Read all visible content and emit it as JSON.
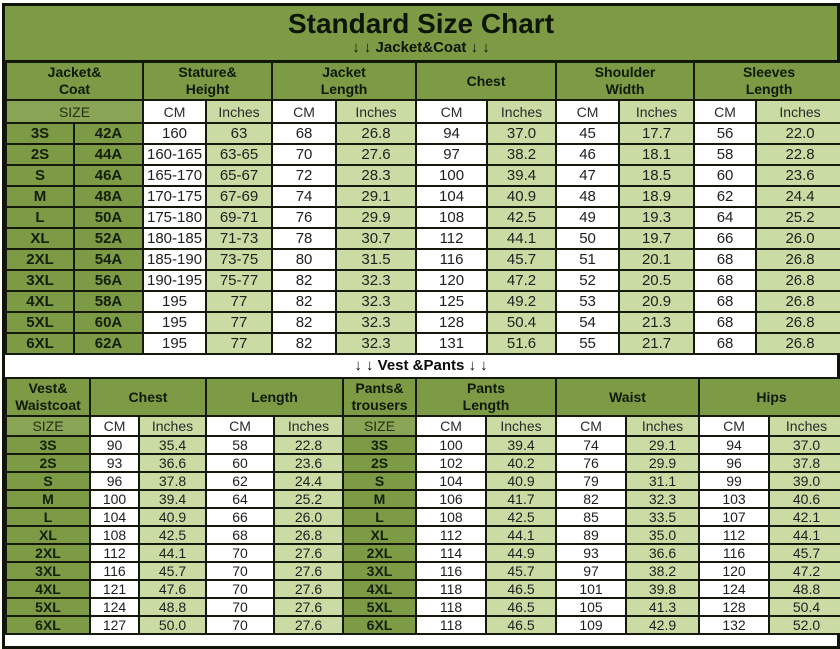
{
  "title": "Standard Size Chart",
  "section_labels": {
    "jacket": "↓ ↓  Jacket&Coat  ↓ ↓",
    "vest": "↓ ↓  Vest &Pants  ↓ ↓"
  },
  "colors": {
    "olive_header": "#7d9a45",
    "olive_subheader": "#8ba557",
    "light_green_cell": "#cbdba4",
    "white_cell": "#ffffff",
    "border": "#15190c"
  },
  "chart_data": [
    {
      "type": "table",
      "title": "Jacket&Coat",
      "groups": [
        {
          "label": "Jacket&\nCoat",
          "span": 2
        },
        {
          "label": "Stature&\nHeight",
          "span": 2
        },
        {
          "label": "Jacket\nLength",
          "span": 2
        },
        {
          "label": "Chest",
          "span": 2
        },
        {
          "label": "Shoulder\nWidth",
          "span": 2
        },
        {
          "label": "Sleeves\nLength",
          "span": 2
        }
      ],
      "subheader": [
        {
          "label": "SIZE",
          "span": 2,
          "kind": "size"
        },
        {
          "label": "CM",
          "kind": "cm"
        },
        {
          "label": "Inches",
          "kind": "in"
        },
        {
          "label": "CM",
          "kind": "cm"
        },
        {
          "label": "Inches",
          "kind": "in"
        },
        {
          "label": "CM",
          "kind": "cm"
        },
        {
          "label": "Inches",
          "kind": "in"
        },
        {
          "label": "CM",
          "kind": "cm"
        },
        {
          "label": "Inches",
          "kind": "in"
        },
        {
          "label": "CM",
          "kind": "cm"
        },
        {
          "label": "Inches",
          "kind": "in"
        }
      ],
      "rows": [
        [
          "3S",
          "42A",
          "160",
          "63",
          "68",
          "26.8",
          "94",
          "37.0",
          "45",
          "17.7",
          "56",
          "22.0"
        ],
        [
          "2S",
          "44A",
          "160-165",
          "63-65",
          "70",
          "27.6",
          "97",
          "38.2",
          "46",
          "18.1",
          "58",
          "22.8"
        ],
        [
          "S",
          "46A",
          "165-170",
          "65-67",
          "72",
          "28.3",
          "100",
          "39.4",
          "47",
          "18.5",
          "60",
          "23.6"
        ],
        [
          "M",
          "48A",
          "170-175",
          "67-69",
          "74",
          "29.1",
          "104",
          "40.9",
          "48",
          "18.9",
          "62",
          "24.4"
        ],
        [
          "L",
          "50A",
          "175-180",
          "69-71",
          "76",
          "29.9",
          "108",
          "42.5",
          "49",
          "19.3",
          "64",
          "25.2"
        ],
        [
          "XL",
          "52A",
          "180-185",
          "71-73",
          "78",
          "30.7",
          "112",
          "44.1",
          "50",
          "19.7",
          "66",
          "26.0"
        ],
        [
          "2XL",
          "54A",
          "185-190",
          "73-75",
          "80",
          "31.5",
          "116",
          "45.7",
          "51",
          "20.1",
          "68",
          "26.8"
        ],
        [
          "3XL",
          "56A",
          "190-195",
          "75-77",
          "82",
          "32.3",
          "120",
          "47.2",
          "52",
          "20.5",
          "68",
          "26.8"
        ],
        [
          "4XL",
          "58A",
          "195",
          "77",
          "82",
          "32.3",
          "125",
          "49.2",
          "53",
          "20.9",
          "68",
          "26.8"
        ],
        [
          "5XL",
          "60A",
          "195",
          "77",
          "82",
          "32.3",
          "128",
          "50.4",
          "54",
          "21.3",
          "68",
          "26.8"
        ],
        [
          "6XL",
          "62A",
          "195",
          "77",
          "82",
          "32.3",
          "131",
          "51.6",
          "55",
          "21.7",
          "68",
          "26.8"
        ]
      ]
    },
    {
      "type": "table",
      "title": "Vest &Pants",
      "groups": [
        {
          "label": "Vest&\nWaistcoat",
          "span": 1
        },
        {
          "label": "Chest",
          "span": 2
        },
        {
          "label": "Length",
          "span": 2
        },
        {
          "label": "Pants&\ntrousers",
          "span": 1
        },
        {
          "label": "Pants\nLength",
          "span": 2
        },
        {
          "label": "Waist",
          "span": 2
        },
        {
          "label": "Hips",
          "span": 2
        }
      ],
      "subheader": [
        {
          "label": "SIZE",
          "kind": "size"
        },
        {
          "label": "CM",
          "kind": "cm"
        },
        {
          "label": "Inches",
          "kind": "in"
        },
        {
          "label": "CM",
          "kind": "cm"
        },
        {
          "label": "Inches",
          "kind": "in"
        },
        {
          "label": "SIZE",
          "kind": "size"
        },
        {
          "label": "CM",
          "kind": "cm"
        },
        {
          "label": "Inches",
          "kind": "in"
        },
        {
          "label": "CM",
          "kind": "cm"
        },
        {
          "label": "Inches",
          "kind": "in"
        },
        {
          "label": "CM",
          "kind": "cm"
        },
        {
          "label": "Inches",
          "kind": "in"
        }
      ],
      "rows": [
        [
          "3S",
          "90",
          "35.4",
          "58",
          "22.8",
          "3S",
          "100",
          "39.4",
          "74",
          "29.1",
          "94",
          "37.0"
        ],
        [
          "2S",
          "93",
          "36.6",
          "60",
          "23.6",
          "2S",
          "102",
          "40.2",
          "76",
          "29.9",
          "96",
          "37.8"
        ],
        [
          "S",
          "96",
          "37.8",
          "62",
          "24.4",
          "S",
          "104",
          "40.9",
          "79",
          "31.1",
          "99",
          "39.0"
        ],
        [
          "M",
          "100",
          "39.4",
          "64",
          "25.2",
          "M",
          "106",
          "41.7",
          "82",
          "32.3",
          "103",
          "40.6"
        ],
        [
          "L",
          "104",
          "40.9",
          "66",
          "26.0",
          "L",
          "108",
          "42.5",
          "85",
          "33.5",
          "107",
          "42.1"
        ],
        [
          "XL",
          "108",
          "42.5",
          "68",
          "26.8",
          "XL",
          "112",
          "44.1",
          "89",
          "35.0",
          "112",
          "44.1"
        ],
        [
          "2XL",
          "112",
          "44.1",
          "70",
          "27.6",
          "2XL",
          "114",
          "44.9",
          "93",
          "36.6",
          "116",
          "45.7"
        ],
        [
          "3XL",
          "116",
          "45.7",
          "70",
          "27.6",
          "3XL",
          "116",
          "45.7",
          "97",
          "38.2",
          "120",
          "47.2"
        ],
        [
          "4XL",
          "121",
          "47.6",
          "70",
          "27.6",
          "4XL",
          "118",
          "46.5",
          "101",
          "39.8",
          "124",
          "48.8"
        ],
        [
          "5XL",
          "124",
          "48.8",
          "70",
          "27.6",
          "5XL",
          "118",
          "46.5",
          "105",
          "41.3",
          "128",
          "50.4"
        ],
        [
          "6XL",
          "127",
          "50.0",
          "70",
          "27.6",
          "6XL",
          "118",
          "46.5",
          "109",
          "42.9",
          "132",
          "52.0"
        ]
      ]
    }
  ]
}
